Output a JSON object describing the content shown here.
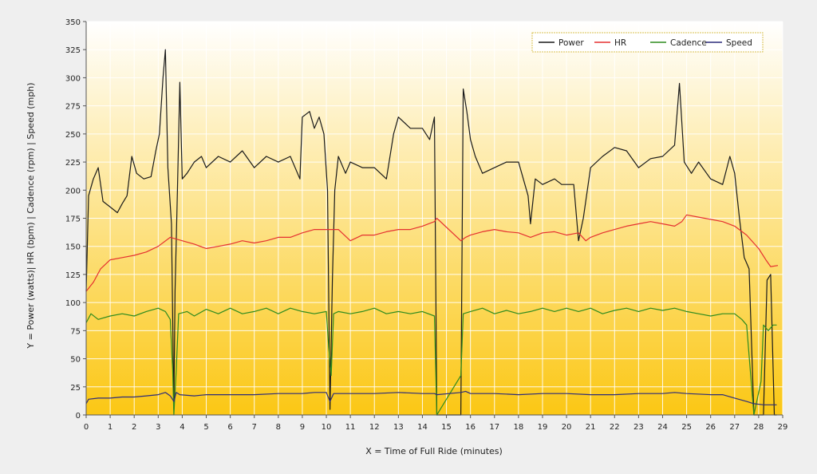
{
  "chart_data": {
    "type": "line",
    "title": "",
    "xlabel": "X = Time of Full Ride (minutes)",
    "ylabel": "Y = Power (watts)| HR (bpm) | Cadence (rpm) | Speed (mph)",
    "xlim": [
      0,
      29
    ],
    "ylim": [
      0,
      350
    ],
    "x_ticks": [
      0,
      1,
      2,
      3,
      4,
      5,
      6,
      7,
      8,
      9,
      10,
      11,
      12,
      13,
      14,
      15,
      16,
      17,
      18,
      19,
      20,
      21,
      22,
      23,
      24,
      25,
      26,
      27,
      28,
      29
    ],
    "y_ticks": [
      0,
      25,
      50,
      75,
      100,
      125,
      150,
      175,
      200,
      225,
      250,
      275,
      300,
      325,
      350
    ],
    "grid": true,
    "legend_position": "top-right",
    "background_gradient": [
      "#ffffff",
      "#fbc714"
    ],
    "series": [
      {
        "name": "Power",
        "color": "#1a1a1a",
        "points": [
          [
            0,
            110
          ],
          [
            0.1,
            195
          ],
          [
            0.3,
            210
          ],
          [
            0.5,
            220
          ],
          [
            0.7,
            190
          ],
          [
            1.0,
            185
          ],
          [
            1.3,
            180
          ],
          [
            1.5,
            188
          ],
          [
            1.7,
            195
          ],
          [
            1.9,
            230
          ],
          [
            2.1,
            215
          ],
          [
            2.4,
            210
          ],
          [
            2.7,
            212
          ],
          [
            2.9,
            235
          ],
          [
            3.05,
            250
          ],
          [
            3.2,
            300
          ],
          [
            3.3,
            325
          ],
          [
            3.4,
            220
          ],
          [
            3.55,
            170
          ],
          [
            3.65,
            5
          ],
          [
            3.7,
            110
          ],
          [
            3.8,
            200
          ],
          [
            3.9,
            296
          ],
          [
            4.0,
            210
          ],
          [
            4.2,
            215
          ],
          [
            4.5,
            225
          ],
          [
            4.8,
            230
          ],
          [
            5.0,
            220
          ],
          [
            5.5,
            230
          ],
          [
            6.0,
            225
          ],
          [
            6.5,
            235
          ],
          [
            7.0,
            220
          ],
          [
            7.5,
            230
          ],
          [
            8.0,
            225
          ],
          [
            8.5,
            230
          ],
          [
            8.9,
            210
          ],
          [
            9.0,
            265
          ],
          [
            9.3,
            270
          ],
          [
            9.5,
            255
          ],
          [
            9.7,
            265
          ],
          [
            9.9,
            250
          ],
          [
            10.05,
            200
          ],
          [
            10.15,
            5
          ],
          [
            10.25,
            120
          ],
          [
            10.35,
            200
          ],
          [
            10.5,
            230
          ],
          [
            10.8,
            215
          ],
          [
            11.0,
            225
          ],
          [
            11.5,
            220
          ],
          [
            12.0,
            220
          ],
          [
            12.5,
            210
          ],
          [
            12.8,
            250
          ],
          [
            13.0,
            265
          ],
          [
            13.5,
            255
          ],
          [
            14.0,
            255
          ],
          [
            14.3,
            245
          ],
          [
            14.5,
            265
          ],
          [
            14.6,
            0
          ],
          [
            15.6,
            0
          ],
          [
            15.7,
            290
          ],
          [
            15.85,
            270
          ],
          [
            16.0,
            245
          ],
          [
            16.2,
            230
          ],
          [
            16.5,
            215
          ],
          [
            17.0,
            220
          ],
          [
            17.5,
            225
          ],
          [
            18.0,
            225
          ],
          [
            18.4,
            195
          ],
          [
            18.5,
            170
          ],
          [
            18.7,
            210
          ],
          [
            19.0,
            205
          ],
          [
            19.5,
            210
          ],
          [
            19.8,
            205
          ],
          [
            20.3,
            205
          ],
          [
            20.5,
            155
          ],
          [
            20.7,
            175
          ],
          [
            21.0,
            220
          ],
          [
            21.5,
            230
          ],
          [
            22.0,
            238
          ],
          [
            22.5,
            235
          ],
          [
            23.0,
            220
          ],
          [
            23.5,
            228
          ],
          [
            24.0,
            230
          ],
          [
            24.5,
            240
          ],
          [
            24.7,
            295
          ],
          [
            24.9,
            225
          ],
          [
            25.2,
            215
          ],
          [
            25.5,
            225
          ],
          [
            26.0,
            210
          ],
          [
            26.5,
            205
          ],
          [
            26.8,
            230
          ],
          [
            27.0,
            215
          ],
          [
            27.2,
            175
          ],
          [
            27.4,
            140
          ],
          [
            27.6,
            130
          ],
          [
            27.8,
            0
          ],
          [
            28.2,
            0
          ],
          [
            28.35,
            120
          ],
          [
            28.5,
            125
          ],
          [
            28.65,
            0
          ],
          [
            28.75,
            0
          ]
        ]
      },
      {
        "name": "HR",
        "color": "#e53030",
        "points": [
          [
            0,
            110
          ],
          [
            0.3,
            118
          ],
          [
            0.6,
            130
          ],
          [
            1.0,
            138
          ],
          [
            1.5,
            140
          ],
          [
            2.0,
            142
          ],
          [
            2.5,
            145
          ],
          [
            3.0,
            150
          ],
          [
            3.5,
            158
          ],
          [
            4.0,
            155
          ],
          [
            4.5,
            152
          ],
          [
            5.0,
            148
          ],
          [
            5.5,
            150
          ],
          [
            6.0,
            152
          ],
          [
            6.5,
            155
          ],
          [
            7.0,
            153
          ],
          [
            7.5,
            155
          ],
          [
            8.0,
            158
          ],
          [
            8.5,
            158
          ],
          [
            9.0,
            162
          ],
          [
            9.5,
            165
          ],
          [
            10.0,
            165
          ],
          [
            10.5,
            165
          ],
          [
            11.0,
            155
          ],
          [
            11.5,
            160
          ],
          [
            12.0,
            160
          ],
          [
            12.5,
            163
          ],
          [
            13.0,
            165
          ],
          [
            13.5,
            165
          ],
          [
            14.0,
            168
          ],
          [
            14.5,
            172
          ],
          [
            14.6,
            175
          ],
          [
            15.6,
            155
          ],
          [
            15.8,
            158
          ],
          [
            16.0,
            160
          ],
          [
            16.5,
            163
          ],
          [
            17.0,
            165
          ],
          [
            17.5,
            163
          ],
          [
            18.0,
            162
          ],
          [
            18.5,
            158
          ],
          [
            19.0,
            162
          ],
          [
            19.5,
            163
          ],
          [
            20.0,
            160
          ],
          [
            20.5,
            162
          ],
          [
            20.8,
            155
          ],
          [
            21.0,
            158
          ],
          [
            21.5,
            162
          ],
          [
            22.0,
            165
          ],
          [
            22.5,
            168
          ],
          [
            23.0,
            170
          ],
          [
            23.5,
            172
          ],
          [
            24.0,
            170
          ],
          [
            24.5,
            168
          ],
          [
            24.8,
            172
          ],
          [
            25.0,
            178
          ],
          [
            25.5,
            176
          ],
          [
            26.0,
            174
          ],
          [
            26.5,
            172
          ],
          [
            27.0,
            168
          ],
          [
            27.5,
            160
          ],
          [
            28.0,
            148
          ],
          [
            28.3,
            138
          ],
          [
            28.5,
            132
          ],
          [
            28.8,
            133
          ]
        ]
      },
      {
        "name": "Cadence",
        "color": "#2e8b1e",
        "points": [
          [
            0,
            82
          ],
          [
            0.2,
            90
          ],
          [
            0.5,
            85
          ],
          [
            1.0,
            88
          ],
          [
            1.5,
            90
          ],
          [
            2.0,
            88
          ],
          [
            2.5,
            92
          ],
          [
            3.0,
            95
          ],
          [
            3.3,
            92
          ],
          [
            3.5,
            85
          ],
          [
            3.6,
            40
          ],
          [
            3.65,
            0
          ],
          [
            3.75,
            40
          ],
          [
            3.85,
            90
          ],
          [
            4.2,
            92
          ],
          [
            4.5,
            88
          ],
          [
            5.0,
            94
          ],
          [
            5.5,
            90
          ],
          [
            6.0,
            95
          ],
          [
            6.5,
            90
          ],
          [
            7.0,
            92
          ],
          [
            7.5,
            95
          ],
          [
            8.0,
            90
          ],
          [
            8.5,
            95
          ],
          [
            9.0,
            92
          ],
          [
            9.5,
            90
          ],
          [
            10.0,
            92
          ],
          [
            10.1,
            60
          ],
          [
            10.2,
            35
          ],
          [
            10.3,
            90
          ],
          [
            10.5,
            92
          ],
          [
            11.0,
            90
          ],
          [
            11.5,
            92
          ],
          [
            12.0,
            95
          ],
          [
            12.5,
            90
          ],
          [
            13.0,
            92
          ],
          [
            13.5,
            90
          ],
          [
            14.0,
            92
          ],
          [
            14.5,
            88
          ],
          [
            14.6,
            0
          ],
          [
            15.6,
            35
          ],
          [
            15.7,
            90
          ],
          [
            16.0,
            92
          ],
          [
            16.5,
            95
          ],
          [
            17.0,
            90
          ],
          [
            17.5,
            93
          ],
          [
            18.0,
            90
          ],
          [
            18.5,
            92
          ],
          [
            19.0,
            95
          ],
          [
            19.5,
            92
          ],
          [
            20.0,
            95
          ],
          [
            20.5,
            92
          ],
          [
            21.0,
            95
          ],
          [
            21.5,
            90
          ],
          [
            22.0,
            93
          ],
          [
            22.5,
            95
          ],
          [
            23.0,
            92
          ],
          [
            23.5,
            95
          ],
          [
            24.0,
            93
          ],
          [
            24.5,
            95
          ],
          [
            25.0,
            92
          ],
          [
            25.5,
            90
          ],
          [
            26.0,
            88
          ],
          [
            26.5,
            90
          ],
          [
            27.0,
            90
          ],
          [
            27.3,
            85
          ],
          [
            27.5,
            80
          ],
          [
            27.8,
            0
          ],
          [
            28.1,
            30
          ],
          [
            28.2,
            80
          ],
          [
            28.4,
            75
          ],
          [
            28.6,
            80
          ],
          [
            28.75,
            80
          ]
        ]
      },
      {
        "name": "Speed",
        "color": "#2b2b7a",
        "points": [
          [
            0,
            10
          ],
          [
            0.1,
            14
          ],
          [
            0.5,
            15
          ],
          [
            1.0,
            15
          ],
          [
            1.5,
            16
          ],
          [
            2.0,
            16
          ],
          [
            2.5,
            17
          ],
          [
            3.0,
            18
          ],
          [
            3.3,
            20
          ],
          [
            3.5,
            17
          ],
          [
            3.65,
            12
          ],
          [
            3.75,
            20
          ],
          [
            3.9,
            18
          ],
          [
            4.5,
            17
          ],
          [
            5.0,
            18
          ],
          [
            5.5,
            18
          ],
          [
            6.0,
            18
          ],
          [
            7.0,
            18
          ],
          [
            8.0,
            19
          ],
          [
            9.0,
            19
          ],
          [
            9.5,
            20
          ],
          [
            10.0,
            20
          ],
          [
            10.15,
            12
          ],
          [
            10.3,
            19
          ],
          [
            11.0,
            19
          ],
          [
            12.0,
            19
          ],
          [
            13.0,
            20
          ],
          [
            14.0,
            19
          ],
          [
            14.5,
            19
          ],
          [
            14.6,
            18
          ],
          [
            15.6,
            20
          ],
          [
            15.8,
            21
          ],
          [
            16.0,
            19
          ],
          [
            17.0,
            19
          ],
          [
            18.0,
            18
          ],
          [
            19.0,
            19
          ],
          [
            20.0,
            19
          ],
          [
            21.0,
            18
          ],
          [
            22.0,
            18
          ],
          [
            23.0,
            19
          ],
          [
            24.0,
            19
          ],
          [
            24.5,
            20
          ],
          [
            25.0,
            19
          ],
          [
            26.0,
            18
          ],
          [
            26.5,
            18
          ],
          [
            27.0,
            15
          ],
          [
            27.5,
            12
          ],
          [
            27.8,
            10
          ],
          [
            28.2,
            9
          ],
          [
            28.5,
            9
          ],
          [
            28.75,
            9
          ]
        ]
      }
    ]
  }
}
